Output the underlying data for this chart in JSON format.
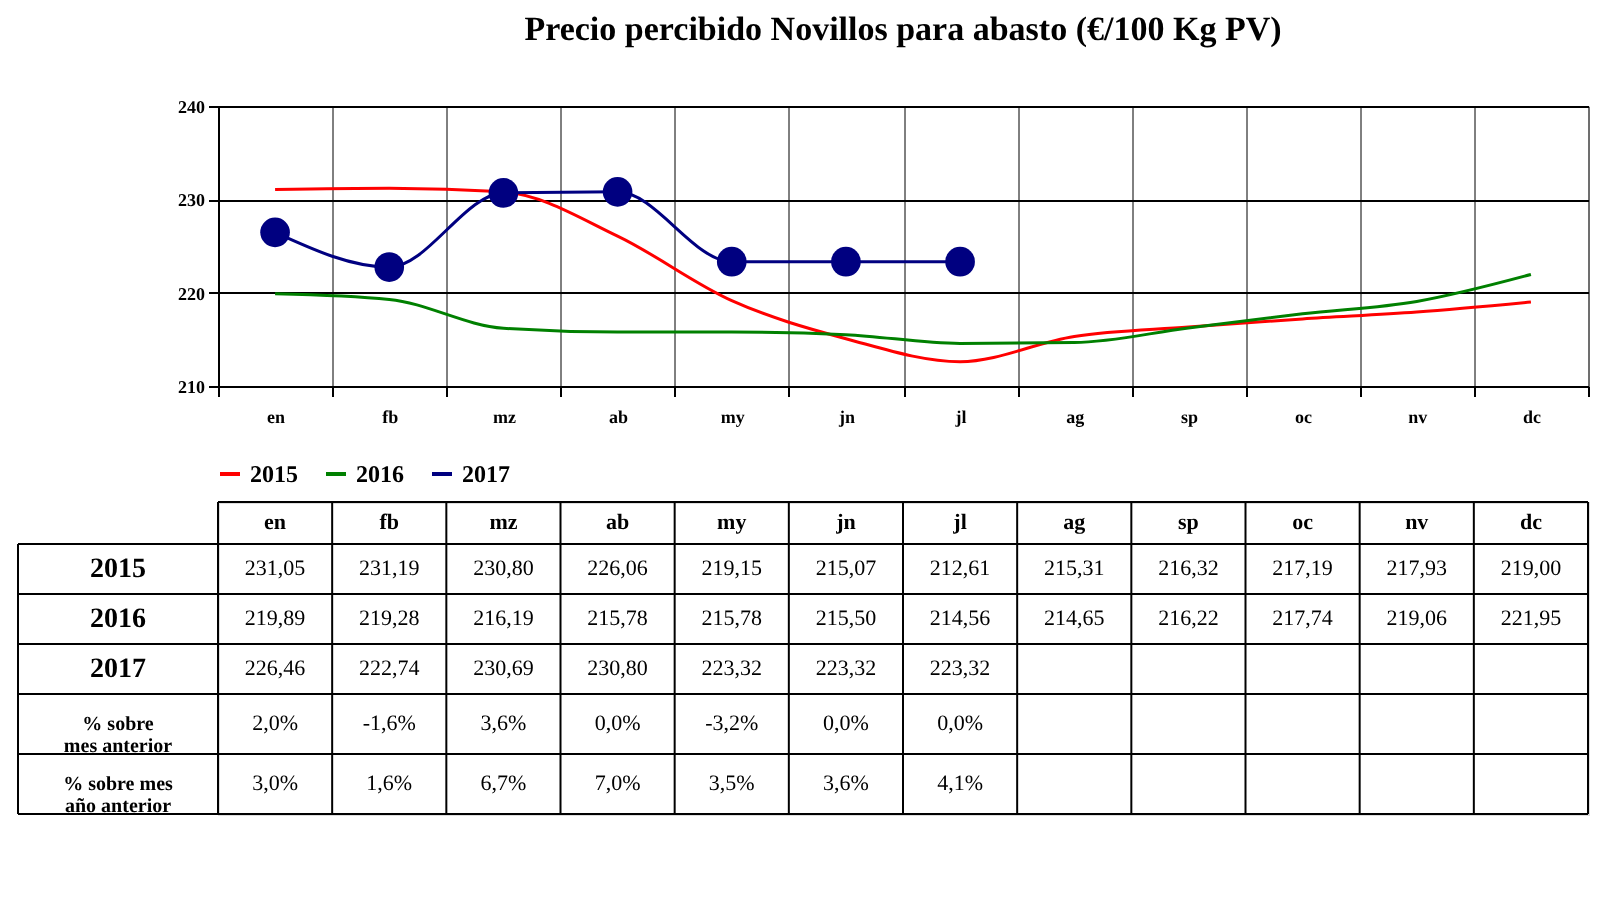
{
  "chart_data": {
    "type": "line",
    "title": "Precio percibido Novillos para abasto (€/100 Kg PV)",
    "categories": [
      "en",
      "fb",
      "mz",
      "ab",
      "my",
      "jn",
      "jl",
      "ag",
      "sp",
      "oc",
      "nv",
      "dc"
    ],
    "series": [
      {
        "name": "2015",
        "color": "#ff0000",
        "marker": "none",
        "values": [
          231.05,
          231.19,
          230.8,
          226.06,
          219.15,
          215.07,
          212.61,
          215.31,
          216.32,
          217.19,
          217.93,
          219.0
        ],
        "value_labels": [
          "231,05",
          "231,19",
          "230,80",
          "226,06",
          "219,15",
          "215,07",
          "212,61",
          "215,31",
          "216,32",
          "217,19",
          "217,93",
          "219,00"
        ]
      },
      {
        "name": "2016",
        "color": "#008000",
        "marker": "none",
        "values": [
          219.89,
          219.28,
          216.19,
          215.78,
          215.78,
          215.5,
          214.56,
          214.65,
          216.22,
          217.74,
          219.06,
          221.95
        ],
        "value_labels": [
          "219,89",
          "219,28",
          "216,19",
          "215,78",
          "215,78",
          "215,50",
          "214,56",
          "214,65",
          "216,22",
          "217,74",
          "219,06",
          "221,95"
        ]
      },
      {
        "name": "2017",
        "color": "#000080",
        "marker": "circle",
        "values": [
          226.46,
          222.74,
          230.69,
          230.8,
          223.32,
          223.32,
          223.32,
          null,
          null,
          null,
          null,
          null
        ],
        "value_labels": [
          "226,46",
          "222,74",
          "230,69",
          "230,80",
          "223,32",
          "223,32",
          "223,32",
          null,
          null,
          null,
          null,
          null
        ]
      }
    ],
    "ylim": [
      210,
      240
    ],
    "yticks": [
      210,
      220,
      230,
      240
    ],
    "grid": true,
    "legend": "bottom",
    "line_style": "solid",
    "annotations": [
      "% sobre mes anterior",
      "2,0%",
      "-1,6%",
      "3,6%",
      "0,0%",
      "-3,2%",
      "0,0%",
      "0,0%",
      "% sobre mes año anterior",
      "3,0%",
      "1,6%",
      "6,7%",
      "7,0%",
      "3,5%",
      "3,6%",
      "4,1%"
    ]
  }
}
